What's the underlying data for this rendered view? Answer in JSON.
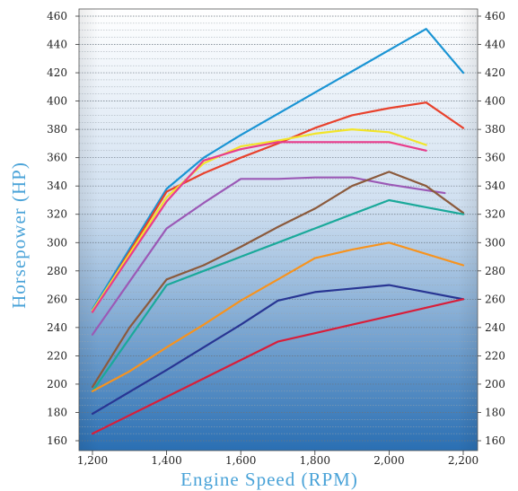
{
  "chart_data": {
    "type": "line",
    "title": "",
    "xlabel": "Engine Speed (RPM)",
    "ylabel": "Horsepower (HP)",
    "xlim": [
      1200,
      2200
    ],
    "ylim": [
      160,
      460
    ],
    "x_ticks": [
      "1,200",
      "1,400",
      "1,600",
      "1,800",
      "2,000",
      "2,200"
    ],
    "x_tick_values": [
      1200,
      1400,
      1600,
      1800,
      2000,
      2200
    ],
    "y_ticks": [
      "160",
      "180",
      "200",
      "220",
      "240",
      "260",
      "280",
      "300",
      "320",
      "340",
      "360",
      "380",
      "400",
      "420",
      "440",
      "460"
    ],
    "y_tick_values": [
      160,
      180,
      200,
      220,
      240,
      260,
      280,
      300,
      320,
      340,
      360,
      380,
      400,
      420,
      440,
      460
    ],
    "grid": "horizontal-dotted",
    "legend": "none",
    "series": [
      {
        "color": "#1a94d4",
        "x": [
          1200,
          1400,
          1500,
          1600,
          1700,
          1800,
          1900,
          2000,
          2100,
          2200
        ],
        "y": [
          253,
          338,
          360,
          376,
          391,
          406,
          421,
          436,
          451,
          420
        ]
      },
      {
        "color": "#e8412c",
        "x": [
          1200,
          1400,
          1500,
          1600,
          1700,
          1800,
          1900,
          2000,
          2100,
          2200
        ],
        "y": [
          251,
          336,
          349,
          360,
          370,
          381,
          390,
          395,
          399,
          381
        ]
      },
      {
        "color": "#f2e52a",
        "x": [
          1200,
          1400,
          1500,
          1600,
          1700,
          1800,
          1900,
          2000,
          2100
        ],
        "y": [
          252,
          332,
          356,
          368,
          372,
          377,
          380,
          378,
          369
        ]
      },
      {
        "color": "#e83c8c",
        "x": [
          1200,
          1400,
          1500,
          1600,
          1700,
          1800,
          1900,
          2000,
          2100
        ],
        "y": [
          251,
          329,
          358,
          366,
          371,
          371,
          371,
          371,
          365
        ]
      },
      {
        "color": "#9b59b6",
        "x": [
          1200,
          1400,
          1500,
          1600,
          1700,
          1800,
          1900,
          2000,
          2100,
          2150
        ],
        "y": [
          235,
          310,
          328,
          345,
          345,
          346,
          346,
          341,
          337,
          335
        ]
      },
      {
        "color": "#8b5a3c",
        "x": [
          1200,
          1300,
          1400,
          1500,
          1600,
          1700,
          1800,
          1900,
          2000,
          2100,
          2200
        ],
        "y": [
          198,
          240,
          274,
          284,
          297,
          311,
          324,
          340,
          350,
          340,
          321
        ]
      },
      {
        "color": "#1aa99a",
        "x": [
          1200,
          1400,
          1500,
          1600,
          1700,
          1800,
          1900,
          2000,
          2100,
          2200
        ],
        "y": [
          195,
          270,
          280,
          290,
          300,
          310,
          320,
          330,
          325,
          320
        ]
      },
      {
        "color": "#f7931e",
        "x": [
          1200,
          1300,
          1400,
          1500,
          1600,
          1700,
          1800,
          1900,
          2000,
          2200
        ],
        "y": [
          195,
          209,
          226,
          242,
          259,
          274,
          289,
          295,
          300,
          284
        ]
      },
      {
        "color": "#283593",
        "x": [
          1200,
          1400,
          1500,
          1600,
          1700,
          1800,
          2000,
          2200
        ],
        "y": [
          179,
          210,
          226,
          242,
          259,
          265,
          270,
          260
        ]
      },
      {
        "color": "#d81e3a",
        "x": [
          1200,
          1400,
          1500,
          1600,
          1700,
          1800,
          1900,
          2000,
          2100,
          2200
        ],
        "y": [
          165,
          191,
          204,
          217,
          230,
          236,
          242,
          248,
          254,
          260
        ]
      }
    ]
  }
}
